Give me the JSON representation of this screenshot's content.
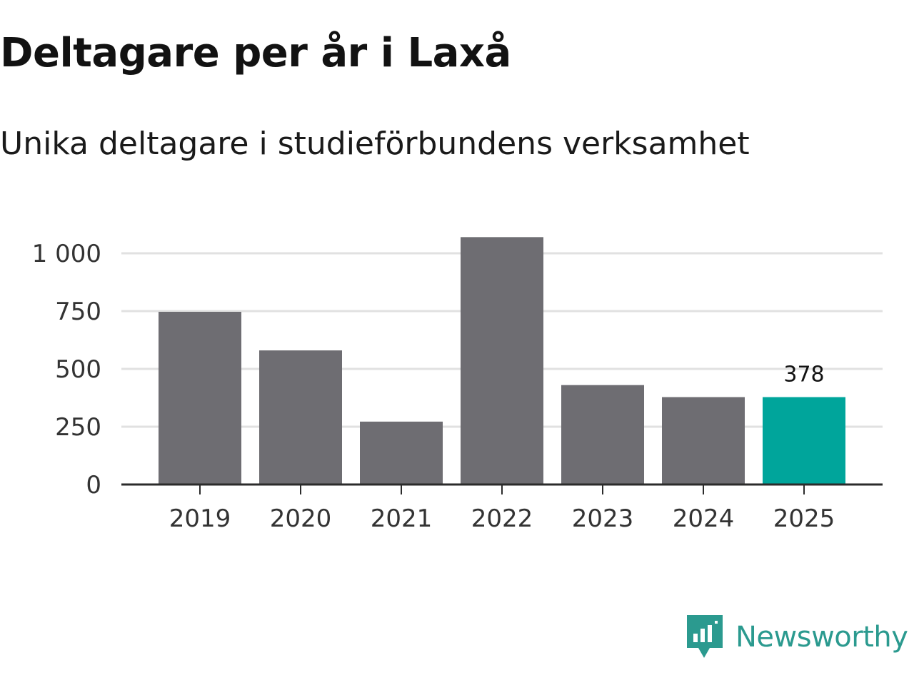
{
  "chart_data": {
    "type": "bar",
    "title": "Deltagare per år i Laxå",
    "subtitle": "Unika deltagare i studieförbundens verksamhet",
    "categories": [
      "2019",
      "2020",
      "2021",
      "2022",
      "2023",
      "2024",
      "2025"
    ],
    "values": [
      747,
      580,
      272,
      1070,
      430,
      378,
      378
    ],
    "ylim": [
      0,
      1000
    ],
    "yticks": [
      0,
      250,
      500,
      750,
      1000
    ],
    "ytick_labels": [
      "0",
      "250",
      "500",
      "750",
      "1 000"
    ],
    "highlight_index": 6,
    "data_labels": [
      {
        "index": 6,
        "text": "378"
      }
    ],
    "grid": true,
    "colors": {
      "bar": "#6e6d72",
      "highlight": "#00a59b",
      "grid": "#e1e1e1",
      "axis": "#2b2b2b"
    }
  },
  "brand": {
    "name": "Newsworthy",
    "color": "#2b9a8f",
    "icon": "newsworthy-logo-icon"
  }
}
